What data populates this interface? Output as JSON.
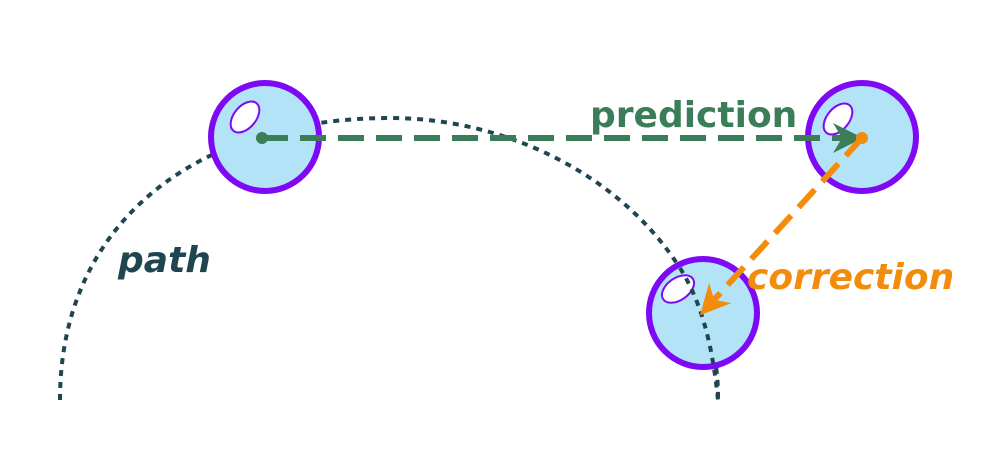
{
  "labels": {
    "path": "path",
    "prediction": "prediction",
    "correction": "correction"
  },
  "colors": {
    "path": "#1f4650",
    "prediction": "#3a7d58",
    "correction": "#f48c0b",
    "ball_fill": "#b3e3f7",
    "ball_stroke": "#7f09f5",
    "background": "#ffffff"
  },
  "balls": [
    {
      "name": "start-ball",
      "role": "start"
    },
    {
      "name": "predicted-ball",
      "role": "prediction"
    },
    {
      "name": "corrected-ball",
      "role": "correction"
    }
  ]
}
